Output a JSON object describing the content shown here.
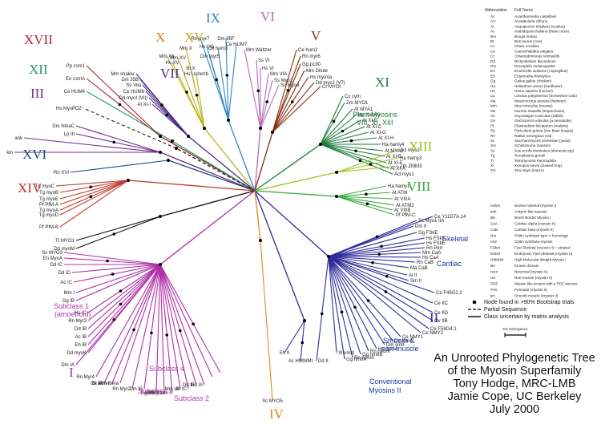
{
  "title_lines": [
    "An Unrooted Phylogenetic Tree",
    "of the Myosin Superfamily",
    "Tony Hodge, MRC-LMB",
    "Jamie Cope, UC Berkeley",
    "July 2000"
  ],
  "scale_label": "5% Divergence",
  "legend": [
    {
      "text": "Node found in >90% Bootstrap trials",
      "kind": "dot"
    },
    {
      "text": "Partial Sequence",
      "kind": "dash"
    },
    {
      "text": "Class uncertain by matrix analysis",
      "kind": "line"
    }
  ],
  "abbrev_header": [
    "Abbreviation",
    "Full Terms"
  ],
  "abbreviations": [
    [
      "Ac",
      "Acanthamoeba castellanii"
    ],
    [
      "Acl",
      "Acetabularia cliftonii"
    ],
    [
      "Ai",
      "Aequipecten irradians (scallop)"
    ],
    [
      "At",
      "Arabidopsis thaliana (thale cress)"
    ],
    [
      "Bm",
      "Brugia malayi"
    ],
    [
      "Bt",
      "Bos taurus (cow)"
    ],
    [
      "Cc",
      "Chara corallina"
    ],
    [
      "Ce",
      "Caenorhabditis elegans"
    ],
    [
      "Cr",
      "Chlamydomonas reinhardtii"
    ],
    [
      "Dd",
      "Dictyostelium discoideum"
    ],
    [
      "Dm",
      "Drosophila melanogaster"
    ],
    [
      "En",
      "Emericella nidulans (Aspergillus)"
    ],
    [
      "Eh",
      "Entamoeba histolytica"
    ],
    [
      "Gg",
      "Gallus gallus (chicken)"
    ],
    [
      "Ha",
      "Helianthus annus (sunflower)"
    ],
    [
      "Hs",
      "Homo sapiens (human)"
    ],
    [
      "Lp",
      "Limulus polyphemus (horseshoe crab)"
    ],
    [
      "Ma",
      "Mesocricetus auratus (hamster)"
    ],
    [
      "Mm",
      "Mus musculus (mouse)"
    ],
    [
      "Ms",
      "Morone saxatilis (striped bass)"
    ],
    [
      "Oc",
      "Oryctolagus cuniculus (rabbit)"
    ],
    [
      "Ov",
      "Onchocerca volvulus (a nematode)"
    ],
    [
      "Pf",
      "Plasmodium falciparum (malaria)"
    ],
    [
      "Pp",
      "Pyricularia grisea (rice blast fungus)"
    ],
    [
      "Rn",
      "Rattus norvegicus (rat)"
    ],
    [
      "Sc",
      "Saccharomyces cerevisiae (yeast)"
    ],
    [
      "Sm",
      "Schistosoma mansoni"
    ],
    [
      "Ss",
      "Sus scrofa domestica (domestic pig)"
    ],
    [
      "Tg",
      "Toxoplasma gondii"
    ],
    [
      "Tt",
      "Tetrahymena thermophila"
    ],
    [
      "Xl",
      "Xenopus laevis (clawed frog)"
    ],
    [
      "Zm",
      "Zea mays (maize)"
    ]
  ],
  "abbreviations2": [
    [
      "Adren",
      "Bovine Adrenal (myosin I)"
    ],
    [
      "ank",
      "Ankyrin like repeats"
    ],
    [
      "Bb",
      "Brush Border Myosin I"
    ],
    [
      "CaA",
      "Cardiac alpha (myosin II)"
    ],
    [
      "CaB",
      "Cardiac beta (myosin II)"
    ],
    [
      "chs",
      "Chitin synthase type V homology"
    ],
    [
      "csm",
      "Chitin synthase-myosin"
    ],
    [
      "FSkel",
      "Fast Skeletal (myosin II) = striated"
    ],
    [
      "ESkel",
      "Embryonic Fast Skeletal (myosin II)"
    ],
    [
      "HMWMI",
      "High Molecular Weight Myosin I"
    ],
    [
      "kin",
      "Kinase domain"
    ],
    [
      "neur",
      "Neuronal (myosin II)"
    ],
    [
      "nm",
      "Non-muscle (myosin II)"
    ],
    [
      "PDZ",
      "Myosin like protein with a PDZ domain."
    ],
    [
      "Peri",
      "Perinatal (myosin II)"
    ],
    [
      "sm",
      "Smooth muscle (myosin II)"
    ]
  ],
  "class_labels": [
    {
      "text": "XVII",
      "color": "#b1252f"
    },
    {
      "text": "XII",
      "color": "#1e9a63"
    },
    {
      "text": "III",
      "color": "#6d2c8f"
    },
    {
      "text": "XVI",
      "color": "#1a4a7a"
    },
    {
      "text": "XIV",
      "color": "#c0392b"
    },
    {
      "text": "X",
      "color": "#d68910"
    },
    {
      "text": "XV",
      "color": "#b7b31c"
    },
    {
      "text": "IX",
      "color": "#2e86c1"
    },
    {
      "text": "VII",
      "color": "#4a2a8a"
    },
    {
      "text": "VI",
      "color": "#b86bb8"
    },
    {
      "text": "V",
      "color": "#8b2e0e"
    },
    {
      "text": "XI",
      "color": "#1e7a3a"
    },
    {
      "text": "XIII",
      "color": "#9ac61e"
    },
    {
      "text": "VIII",
      "color": "#36a83c"
    },
    {
      "text": "II",
      "color": "#2c2c9a"
    },
    {
      "text": "I",
      "color": "#b030a8"
    },
    {
      "text": "IV",
      "color": "#e08a1e"
    }
  ],
  "group_labels": [
    {
      "text": "Plant Myosins",
      "color": "#1e7a3a"
    },
    {
      "text": "VIII, XI, XIII",
      "color": "#1e7a3a"
    },
    {
      "text": "Skeletal",
      "color": "#1a3aa0"
    },
    {
      "text": "Cardiac",
      "color": "#1a3aa0"
    },
    {
      "text": "Smooth &",
      "color": "#1a3aa0"
    },
    {
      "text": "non-muscle",
      "color": "#1a3aa0"
    },
    {
      "text": "Conventional",
      "color": "#1a3aa0"
    },
    {
      "text": "Myosins II",
      "color": "#1a3aa0"
    },
    {
      "text": "Subclass 1",
      "color": "#b030a8"
    },
    {
      "text": "(amoeboid)",
      "color": "#b030a8"
    },
    {
      "text": "Subclass 4",
      "color": "#b030a8"
    },
    {
      "text": "Subclass 3",
      "color": "#b030a8"
    },
    {
      "text": "Subclass 2",
      "color": "#b030a8"
    }
  ],
  "leaves": [
    "Pp csm1",
    "En csmA",
    "Ce HUM4",
    "Hs MysPDZ",
    "Dm NinaC",
    "Lp III",
    "ank",
    "kin",
    "Rn XVI",
    "Tg myoC",
    "Tg myoB",
    "Tg myoE",
    "Pf PfM-A",
    "Tg myoA",
    "Tg myoD",
    "Pf PfM-B",
    "Tt MYO1",
    "Dd myoM",
    "Mm Waltzer",
    "Ss VI",
    "Hs VI",
    "Mm VIA",
    "Ss Myo2",
    "Sc Myo4",
    "Ce hum2",
    "Rn myr6",
    "Gg p190",
    "Mm Dilute",
    "Hs myoVa",
    "Dd myoJ (V7)",
    "Cr MYOI",
    "Rn myr7",
    "Hs IXb",
    "Dm myr5",
    "Ce hum3",
    "Dm 95F",
    "Ce HUM7",
    "Mm Xb",
    "Hs XV",
    "Mm XV",
    "Mm X",
    "Bt X",
    "Hs UsherIb",
    "Mm shaker",
    "Dm 35B",
    "Ss Vila",
    "Ce HUM6",
    "Dd myoI (VII)",
    "At XI-I",
    "Cc cym",
    "Zm MYO1",
    "At MYA1",
    "Ha hamy2",
    "At XI-E",
    "At XI-C",
    "At XI-G",
    "At XI-H",
    "Ha hamy4",
    "At MYA2",
    "At XI-B",
    "At XI-F",
    "At XI-A",
    "Acl myo1",
    "Acl myo2",
    "Ha hamy3",
    "Zm ZMM3",
    "Ha hamy1",
    "At ATM",
    "At VIIIA",
    "At ATM2",
    "At VIIIB",
    "Pf PfM-C",
    "Ce Y11D7A.14",
    "Sc Myo1 IIA",
    "Dm II",
    "Gg FSkE",
    "Hs FSkE",
    "Hs FSkE",
    "Rn Peri",
    "Mm CaA",
    "Hs CaA",
    "Rn CaB",
    "Ma CaB",
    "Ai II",
    "Sm II",
    "Ce F45G2.2",
    "Ce IIC",
    "Ce IID",
    "Ov IIB",
    "Ce F58G4.1",
    "Ce NMY2",
    "Ce NMY1",
    "Dm nmII",
    "Dm smII",
    "Hs nmIIA",
    "Rn neurII",
    "Gg nmIIB",
    "Rn nmIIA",
    "Gg nmIIA",
    "Xl nmIII",
    "Dd II",
    "Eh II",
    "Ac HMWMI",
    "Sc MYO5",
    "Sc MYO3",
    "En MyoA",
    "Dd IC",
    "Dd ID",
    "Ac IC",
    "Mm I",
    "Gg IB",
    "Hs IC",
    "Rn Myr3",
    "Dd IB",
    "Ac IB",
    "Eh IB",
    "Dd myoK",
    "Dm IA",
    "Rn Myr4",
    "Ce IA",
    "Bt Adren",
    "Mm Ibeta",
    "Rn Myr2",
    "Dm IB",
    "Gg BB",
    "Hs Myr1",
    "Mm Brain I",
    "Mm IA",
    "Bt IC",
    "Dd IE",
    "Dd IA"
  ]
}
